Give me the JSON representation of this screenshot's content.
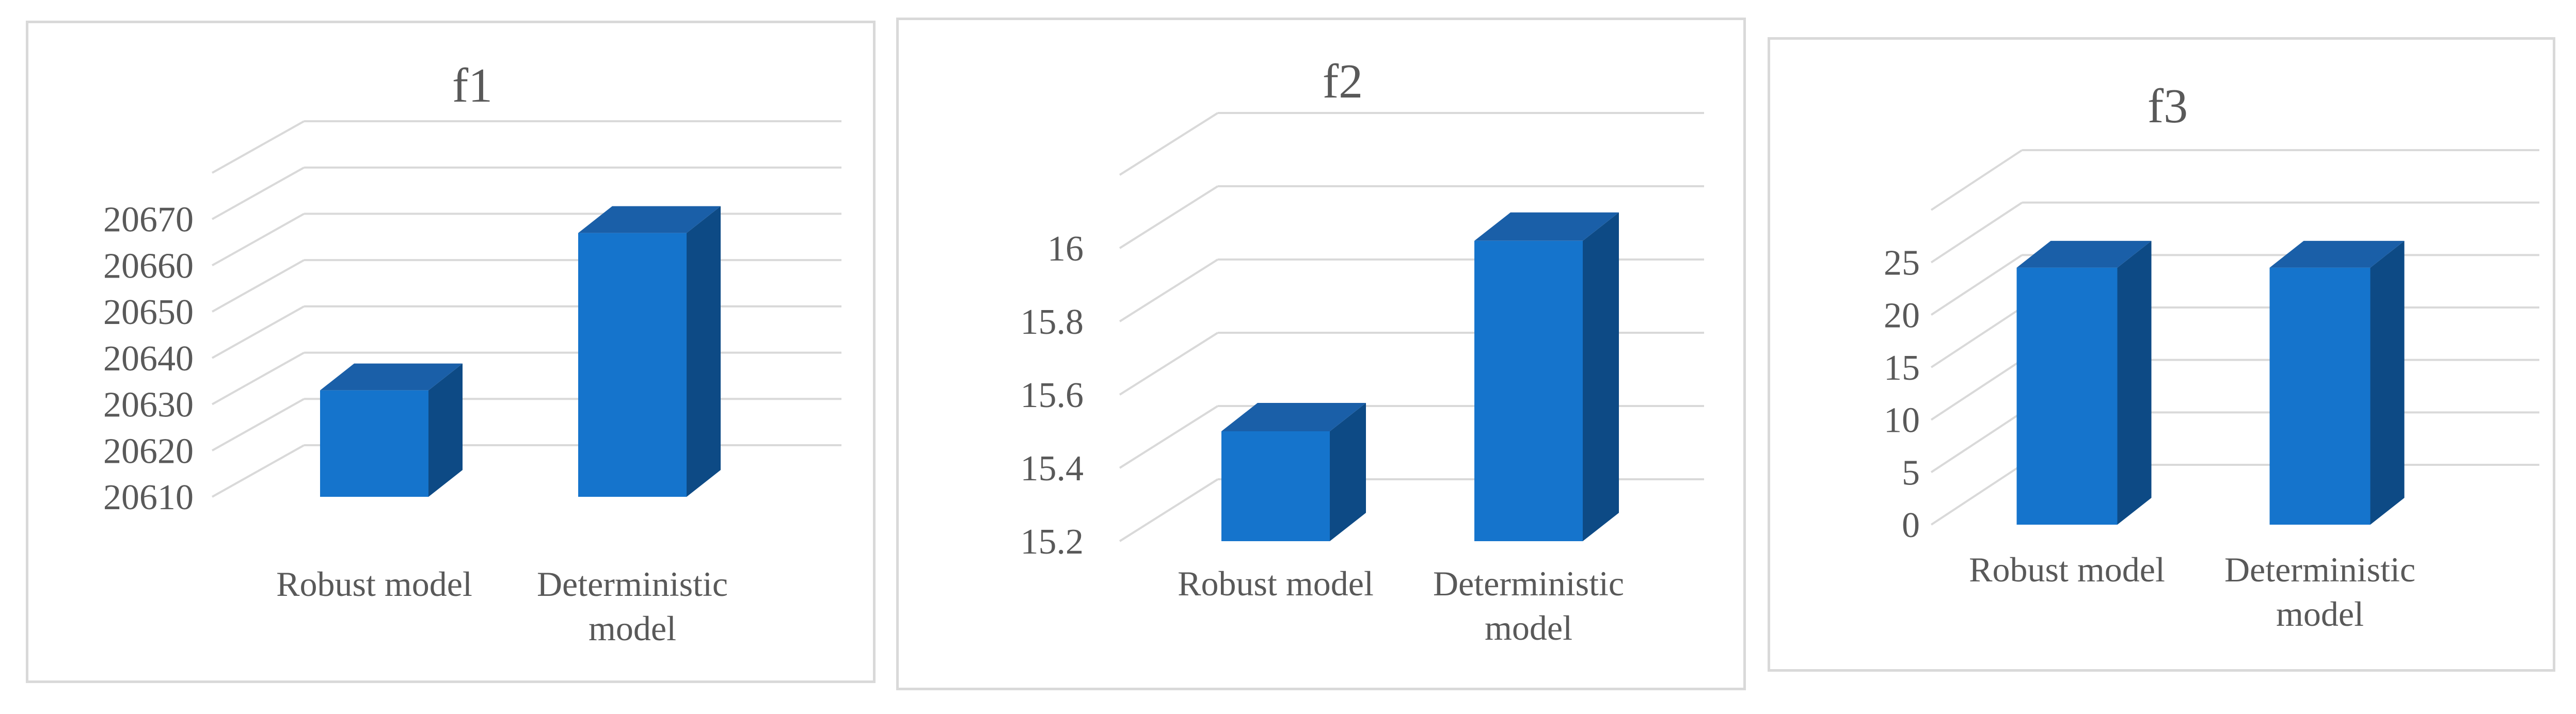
{
  "colors": {
    "bar_front": "#1574cc",
    "bar_top": "#1a5fa8",
    "bar_side": "#0d4a85",
    "grid": "#d9d9d9",
    "text": "#595959",
    "border": "#d9d9d9"
  },
  "chart_data": [
    {
      "type": "bar",
      "title": "f1",
      "categories": [
        [
          "Robust model"
        ],
        [
          "Deterministic",
          "model"
        ]
      ],
      "values": [
        20633,
        20667
      ],
      "yticks": [
        20610,
        20620,
        20630,
        20640,
        20650,
        20660,
        20670
      ],
      "ylim": [
        20610,
        20680
      ],
      "grid": true,
      "view": "3d-column"
    },
    {
      "type": "bar",
      "title": "f2",
      "categories": [
        [
          "Robust model"
        ],
        [
          "Deterministic",
          "model"
        ]
      ],
      "values": [
        15.5,
        16.02
      ],
      "yticks": [
        15.2,
        15.4,
        15.6,
        15.8,
        16
      ],
      "ylim": [
        15.2,
        16.2
      ],
      "grid": true,
      "view": "3d-column"
    },
    {
      "type": "bar",
      "title": "f3",
      "categories": [
        [
          "Robust model"
        ],
        [
          "Deterministic",
          "model"
        ]
      ],
      "values": [
        24.5,
        24.5
      ],
      "yticks": [
        0,
        5,
        10,
        15,
        20,
        25
      ],
      "ylim": [
        0,
        30
      ],
      "grid": true,
      "view": "3d-column"
    }
  ]
}
